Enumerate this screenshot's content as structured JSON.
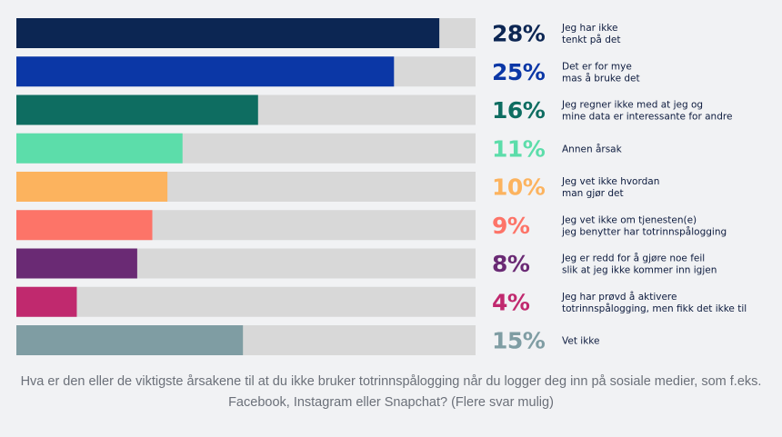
{
  "chart_data": {
    "type": "bar",
    "orientation": "horizontal",
    "xlim": [
      0,
      30
    ],
    "grid": false,
    "legend": "none",
    "categories": [
      [
        "Jeg har ikke",
        "tenkt på det"
      ],
      [
        "Det er for mye",
        "mas å bruke det"
      ],
      [
        "Jeg regner ikke med at jeg og",
        "mine data er interessante for andre"
      ],
      [
        "Annen årsak"
      ],
      [
        "Jeg vet ikke hvordan",
        "man gjør det"
      ],
      [
        "Jeg vet ikke om tjenesten(e)",
        "jeg benytter har totrinnspålogging"
      ],
      [
        "Jeg er redd for å gjøre noe feil",
        "slik at jeg ikke kommer inn igjen"
      ],
      [
        "Jeg har prøvd å aktivere",
        "totrinnspålogging, men fikk det ikke til"
      ],
      [
        "Vet ikke"
      ]
    ],
    "values": [
      28,
      25,
      16,
      11,
      10,
      9,
      8,
      4,
      15
    ],
    "value_labels": [
      "28%",
      "25%",
      "16%",
      "11%",
      "10%",
      "9%",
      "8%",
      "4%",
      "15%"
    ],
    "colors": [
      "#0c2653",
      "#0b37a6",
      "#0e6d61",
      "#5cddaa",
      "#fcb35e",
      "#fd7468",
      "#6a2a74",
      "#c0296e",
      "#7f9da3"
    ],
    "track_color": "#d8d8d8",
    "caption": "Hva er den eller de viktigste årsakene til at du ikke bruker totrinnspålogging når du logger deg inn på sosiale medier, som f.eks. Facebook, Instagram eller Snapchat? (Flere svar mulig)"
  }
}
